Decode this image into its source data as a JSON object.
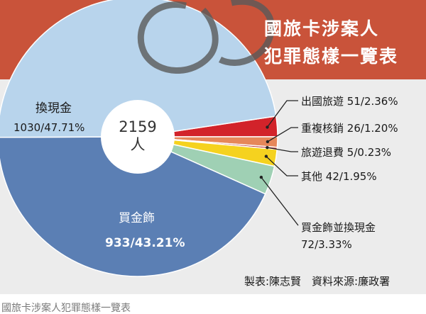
{
  "chart_data": {
    "type": "pie",
    "title_lines": [
      "國旅卡涉案人",
      "犯罪態樣一覽表"
    ],
    "center_text": {
      "value": "2159",
      "unit": "人"
    },
    "slices": [
      {
        "label": "換現金",
        "value_text": "1030/47.71%",
        "count": 1030,
        "percent": 47.71,
        "color": "#b8d4ec"
      },
      {
        "label": "出國旅遊",
        "value_text": "51/2.36%",
        "count": 51,
        "percent": 2.36,
        "color": "#d2232a"
      },
      {
        "label": "重複核銷",
        "value_text": "26/1.20%",
        "count": 26,
        "percent": 1.2,
        "color": "#e6875a"
      },
      {
        "label": "旅遊退費",
        "value_text": "5/0.23%",
        "count": 5,
        "percent": 0.23,
        "color": "#b7211f"
      },
      {
        "label": "其他",
        "value_text": "42/1.95%",
        "count": 42,
        "percent": 1.95,
        "color": "#f5d21f"
      },
      {
        "label": "買金飾並換現金",
        "value_text": "72/3.33%",
        "count": 72,
        "percent": 3.33,
        "color": "#9fd0b4"
      },
      {
        "label": "買金飾",
        "value_text": "933/43.21%",
        "count": 933,
        "percent": 43.21,
        "color": "#5b7fb4"
      }
    ]
  },
  "credit": "製表:陳志賢　資料來源:廉政署",
  "caption": "國旅卡涉案人犯罪態樣一覽表",
  "colors": {
    "header_band": "#c9533a",
    "background": "#ececec",
    "leader_line": "#222222"
  }
}
